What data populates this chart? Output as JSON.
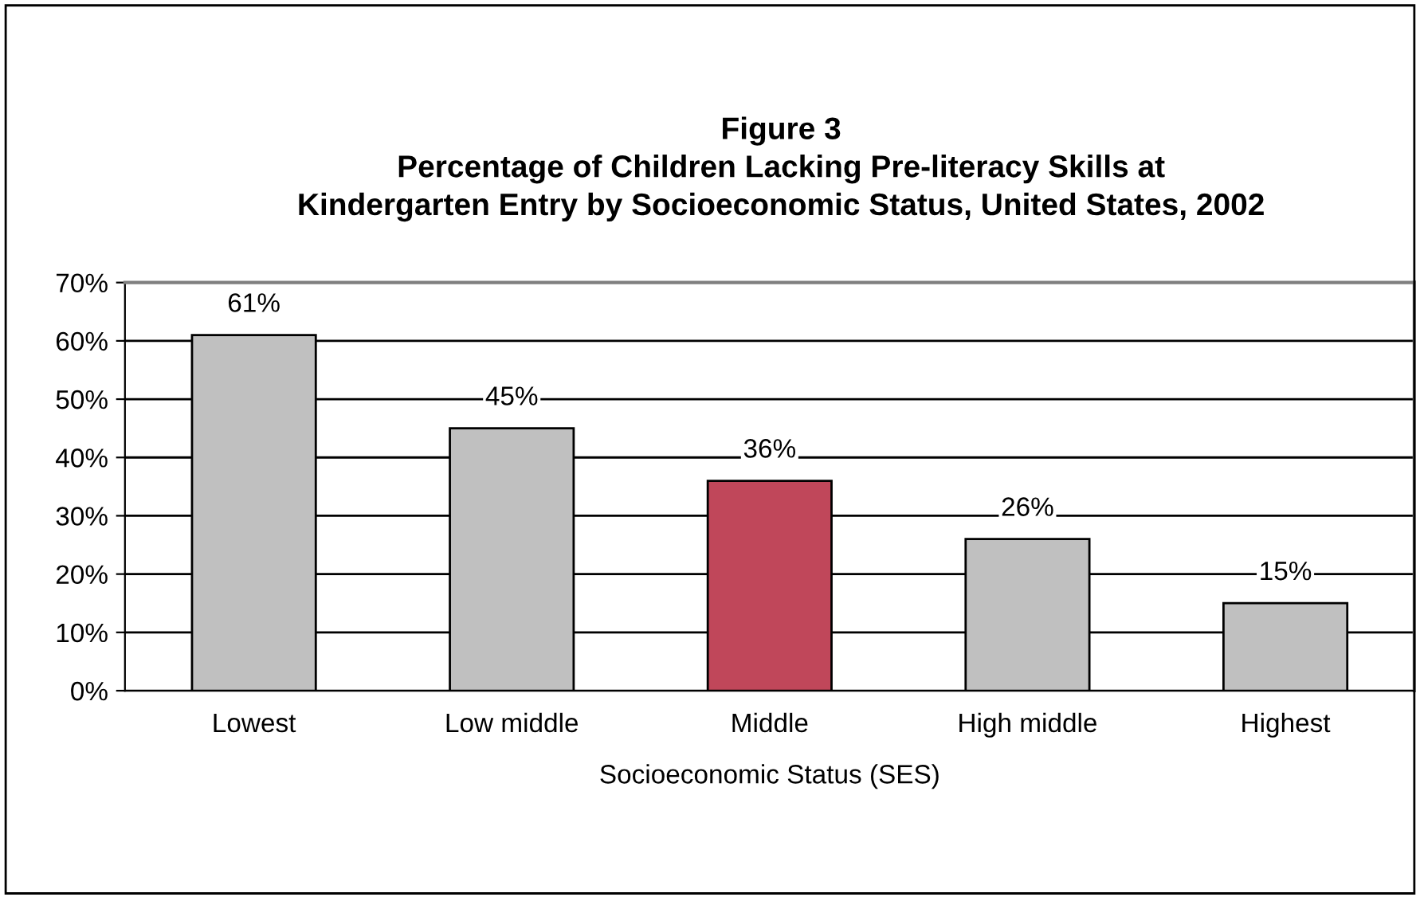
{
  "chart_data": {
    "type": "bar",
    "title": "Figure 3\nPercentage of Children Lacking Pre-literacy Skills at\nKindergarten Entry by Socioeconomic Status, United States, 2002",
    "xlabel": "Socioeconomic Status (SES)",
    "categories": [
      "Lowest",
      "Low middle",
      "Middle",
      "High middle",
      "Highest"
    ],
    "values": [
      61,
      45,
      36,
      26,
      15
    ],
    "colors": [
      "#c0c0c0",
      "#c0c0c0",
      "#c0475a",
      "#c0c0c0",
      "#c0c0c0"
    ],
    "value_labels": [
      "61%",
      "45%",
      "36%",
      "26%",
      "15%"
    ],
    "ylim": [
      0,
      70
    ],
    "yticks": [
      {
        "value": 0,
        "label": "0%"
      },
      {
        "value": 10,
        "label": "10%"
      },
      {
        "value": 20,
        "label": "20%"
      },
      {
        "value": 30,
        "label": "30%"
      },
      {
        "value": 40,
        "label": "40%"
      },
      {
        "value": 50,
        "label": "50%"
      },
      {
        "value": 60,
        "label": "60%"
      },
      {
        "value": 70,
        "label": "70%"
      }
    ],
    "grid": "y"
  }
}
